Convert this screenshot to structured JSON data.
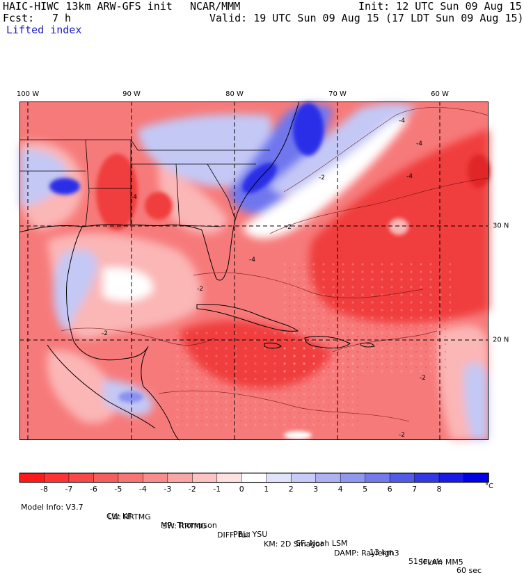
{
  "header": {
    "model": "HAIC-HIWC 13km ARW-GFS init",
    "org": "NCAR/MMM",
    "init": "Init: 12 UTC Sun 09 Aug 15",
    "fcst_label": "Fcst:",
    "fcst_value": "7 h",
    "valid": "Valid: 19 UTC Sun 09 Aug 15 (17 LDT Sun 09 Aug 15)",
    "field": "Lifted index"
  },
  "map": {
    "lon_labels": [
      "100 W",
      "90 W",
      "80 W",
      "70 W",
      "60 W"
    ],
    "lat_labels": [
      "30 N",
      "20 N"
    ],
    "contour_labels": [
      "-4",
      "-4",
      "-4",
      "-2",
      "-2",
      "-2",
      "-2",
      "-2",
      "-2",
      "-4",
      "-4"
    ],
    "colors": {
      "strong_negative": "#f03c3c",
      "negative": "#f77a7a",
      "weak_negative": "#fbb6b6",
      "neutral": "#ffffff",
      "weak_positive": "#c4c8f5",
      "positive": "#6f77ee",
      "strong_positive": "#2b2ee6"
    }
  },
  "colorbar": {
    "labels": [
      "-8",
      "-7",
      "-6",
      "-5",
      "-4",
      "-3",
      "-2",
      "-1",
      "0",
      "1",
      "2",
      "3",
      "4",
      "5",
      "6",
      "7",
      "8"
    ],
    "unit": "°C",
    "colors": [
      "#ff1a1a",
      "#ff3333",
      "#f84848",
      "#f55e5e",
      "#f77575",
      "#f98c8c",
      "#fba6a6",
      "#fdc2c2",
      "#ffe1e1",
      "#ffffff",
      "#e1e3fb",
      "#c8cbf7",
      "#aeb2f3",
      "#9097ef",
      "#727aec",
      "#525ae8",
      "#3338e6",
      "#1a1ae8",
      "#0000e6"
    ]
  },
  "model_info": {
    "line1": [
      "Model Info: V3.7",
      "CU: KF",
      "MP: Thompson",
      "PBL: YSU",
      "SF: Noah LSM",
      "13 km",
      "51 levels",
      "60 sec"
    ],
    "line2": [
      "LW: RRTMG",
      "SW: RRTMG",
      "DIFF: full",
      "KM: 2D Smagor",
      "DAMP: Rayleigh3",
      "SFLAY: MM5"
    ]
  }
}
